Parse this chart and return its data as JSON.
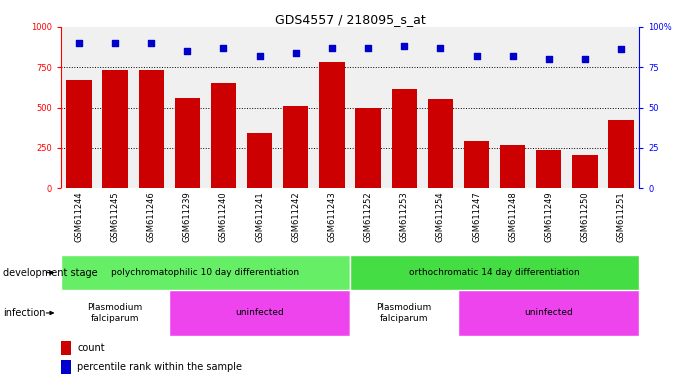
{
  "title": "GDS4557 / 218095_s_at",
  "samples": [
    "GSM611244",
    "GSM611245",
    "GSM611246",
    "GSM611239",
    "GSM611240",
    "GSM611241",
    "GSM611242",
    "GSM611243",
    "GSM611252",
    "GSM611253",
    "GSM611254",
    "GSM611247",
    "GSM611248",
    "GSM611249",
    "GSM611250",
    "GSM611251"
  ],
  "counts": [
    670,
    730,
    730,
    560,
    650,
    340,
    510,
    780,
    500,
    615,
    550,
    295,
    265,
    235,
    205,
    420
  ],
  "percentiles": [
    90,
    90,
    90,
    85,
    87,
    82,
    84,
    87,
    87,
    88,
    87,
    82,
    82,
    80,
    80,
    86
  ],
  "bar_color": "#cc0000",
  "dot_color": "#0000cc",
  "ylim_left": [
    0,
    1000
  ],
  "ylim_right": [
    0,
    100
  ],
  "yticks_left": [
    0,
    250,
    500,
    750,
    1000
  ],
  "yticks_right": [
    0,
    25,
    50,
    75,
    100
  ],
  "ytick_labels_right": [
    "0",
    "25",
    "50",
    "75",
    "100%"
  ],
  "gridlines": [
    250,
    500,
    750
  ],
  "dev_stage_groups": [
    {
      "label": "polychromatophilic 10 day differentiation",
      "start": 0,
      "end": 8,
      "color": "#66ee66"
    },
    {
      "label": "orthochromatic 14 day differentiation",
      "start": 8,
      "end": 16,
      "color": "#44dd44"
    }
  ],
  "infection_groups": [
    {
      "label": "Plasmodium\nfalciparum",
      "start": 0,
      "end": 3,
      "color": "#ffffff"
    },
    {
      "label": "uninfected",
      "start": 3,
      "end": 8,
      "color": "#ee44ee"
    },
    {
      "label": "Plasmodium\nfalciparum",
      "start": 8,
      "end": 11,
      "color": "#ffffff"
    },
    {
      "label": "uninfected",
      "start": 11,
      "end": 16,
      "color": "#ee44ee"
    }
  ],
  "dev_stage_label": "development stage",
  "infection_label": "infection",
  "legend_count_label": "count",
  "legend_percentile_label": "percentile rank within the sample",
  "chart_bg_color": "#f0f0f0",
  "xtick_bg_color": "#d0d0d0",
  "title_fontsize": 9,
  "tick_fontsize": 6,
  "label_fontsize": 7,
  "annotation_fontsize": 6.5
}
